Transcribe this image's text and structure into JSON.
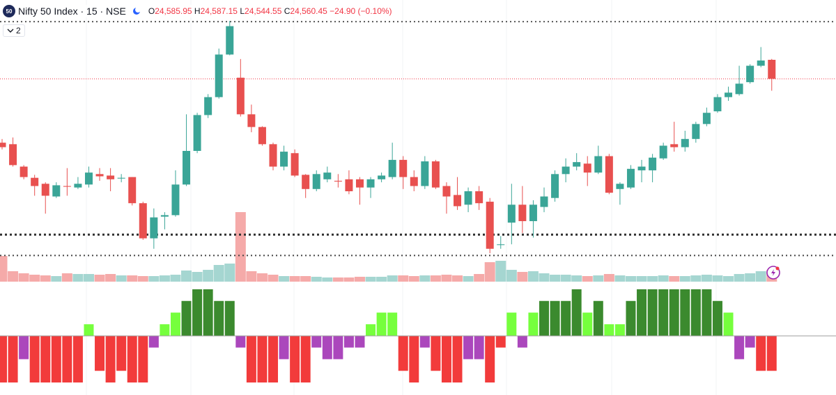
{
  "header": {
    "badge": "50",
    "title": "Nifty 50 Index · 15 · NSE",
    "ohlc": [
      {
        "label": "O",
        "value": "24,585.95"
      },
      {
        "label": "H",
        "value": "24,587.15"
      },
      {
        "label": "L",
        "value": "24,544.55"
      },
      {
        "label": "C",
        "value": "24,560.45"
      }
    ],
    "change": "−24.90 (−0.10%)",
    "indicators_count": "2"
  },
  "chart_data": [
    {
      "type": "candlestick",
      "up_color": "#3aa597",
      "down_color": "#e8504f",
      "price_line_color": "#f23645",
      "ylim": [
        24289,
        24666
      ],
      "levels": [
        24637,
        24352,
        24324
      ],
      "open": [
        24475,
        24473,
        24443,
        24428,
        24420,
        24403,
        24417,
        24415,
        24419,
        24433,
        24431,
        24427,
        24429,
        24394,
        24347,
        24376,
        24378,
        24419,
        24464,
        24512,
        24536,
        24593,
        24562,
        24513,
        24496,
        24473,
        24443,
        24461,
        24432,
        24413,
        24426,
        24424,
        24426,
        24426,
        24415,
        24426,
        24429,
        24452,
        24429,
        24417,
        24450,
        24417,
        24405,
        24392,
        24410,
        24396,
        24338,
        24368,
        24392,
        24370,
        24389,
        24401,
        24433,
        24443,
        24447,
        24435,
        24457,
        24413,
        24415,
        24438,
        24438,
        24454,
        24473,
        24469,
        24480,
        24500,
        24517,
        24536,
        24540,
        24556,
        24578,
        24585.95
      ],
      "high": [
        24480,
        24482,
        24445,
        24432,
        24422,
        24422,
        24441,
        24429,
        24443,
        24441,
        24441,
        24433,
        24429,
        24396,
        24387,
        24382,
        24438,
        24513,
        24515,
        24540,
        24601,
        24638,
        24587,
        24526,
        24497,
        24475,
        24471,
        24466,
        24433,
        24438,
        24443,
        24433,
        24438,
        24429,
        24429,
        24435,
        24475,
        24457,
        24438,
        24457,
        24452,
        24422,
        24429,
        24415,
        24417,
        24401,
        24350,
        24420,
        24417,
        24398,
        24415,
        24438,
        24454,
        24461,
        24457,
        24471,
        24460,
        24422,
        24445,
        24452,
        24460,
        24475,
        24503,
        24491,
        24503,
        24522,
        24540,
        24550,
        24578,
        24580,
        24603,
        24587.15
      ],
      "low": [
        24466,
        24443,
        24426,
        24404,
        24380,
        24401,
        24404,
        24413,
        24415,
        24424,
        24410,
        24422,
        24391,
        24345,
        24333,
        24359,
        24376,
        24417,
        24461,
        24508,
        24534,
        24592,
        24510,
        24489,
        24471,
        24438,
        24438,
        24429,
        24401,
        24410,
        24422,
        24415,
        24406,
        24392,
        24401,
        24422,
        24426,
        24413,
        24410,
        24413,
        24413,
        24380,
        24385,
        24382,
        24385,
        24327,
        24333,
        24339,
        24354,
        24348,
        24382,
        24396,
        24422,
        24438,
        24417,
        24433,
        24406,
        24392,
        24413,
        24422,
        24422,
        24452,
        24463,
        24463,
        24475,
        24497,
        24515,
        24531,
        24538,
        24554,
        24576,
        24544.55
      ],
      "close": [
        24469,
        24445,
        24429,
        24417,
        24404,
        24418,
        24416,
        24420,
        24435,
        24430,
        24426,
        24428,
        24394,
        24347,
        24375,
        24378,
        24419,
        24464,
        24512,
        24536,
        24593,
        24631,
        24513,
        24496,
        24473,
        24443,
        24463,
        24431,
        24413,
        24433,
        24435,
        24423,
        24410,
        24415,
        24426,
        24431,
        24452,
        24429,
        24417,
        24450,
        24415,
        24403,
        24390,
        24410,
        24394,
        24333,
        24339,
        24392,
        24370,
        24392,
        24403,
        24433,
        24443,
        24449,
        24435,
        24457,
        24408,
        24420,
        24440,
        24443,
        24455,
        24471,
        24469,
        24480,
        24500,
        24515,
        24536,
        24542,
        24554,
        24578,
        24585,
        24560.45
      ]
    },
    {
      "type": "bar",
      "up_color": "#a5d6d1",
      "down_color": "#f5aaa9",
      "ylim": [
        0,
        100
      ],
      "values": [
        37,
        15,
        12,
        10,
        9,
        8,
        12,
        11,
        11,
        10,
        11,
        9,
        9,
        8,
        8,
        9,
        10,
        16,
        14,
        17,
        24,
        26,
        100,
        15,
        12,
        10,
        8,
        8,
        8,
        7,
        6,
        6,
        6,
        7,
        7,
        7,
        9,
        9,
        8,
        9,
        9,
        10,
        9,
        8,
        11,
        28,
        30,
        17,
        14,
        15,
        12,
        10,
        10,
        9,
        8,
        9,
        11,
        9,
        8,
        8,
        8,
        9,
        8,
        8,
        9,
        10,
        9,
        8,
        11,
        12,
        15,
        17
      ]
    },
    {
      "type": "bar",
      "ylim": [
        -4,
        4
      ],
      "zero_color": "#9e9e9e",
      "values": [
        -4,
        -4,
        -2,
        -4,
        -4,
        -4,
        -4,
        -4,
        1,
        -3,
        -4,
        -3,
        -4,
        -4,
        -1,
        1,
        2,
        3,
        4,
        4,
        3,
        3,
        -1,
        -4,
        -4,
        -4,
        -2,
        -4,
        -4,
        -1,
        -2,
        -2,
        -1,
        -1,
        1,
        2,
        2,
        -3,
        -4,
        -1,
        -3,
        -4,
        -4,
        -2,
        -2,
        -4,
        -1,
        2,
        -1,
        2,
        3,
        3,
        3,
        4,
        2,
        3,
        1,
        1,
        3,
        4,
        4,
        4,
        4,
        4,
        4,
        4,
        3,
        2,
        -2,
        -1,
        -3,
        -3
      ],
      "colors": [
        "#f23b3b",
        "#f23b3b",
        "#ab47bc",
        "#f23b3b",
        "#f23b3b",
        "#f23b3b",
        "#f23b3b",
        "#f23b3b",
        "#76ff3d",
        "#f23b3b",
        "#f23b3b",
        "#f23b3b",
        "#f23b3b",
        "#f23b3b",
        "#ab47bc",
        "#76ff3d",
        "#76ff3d",
        "#3b8a2e",
        "#3b8a2e",
        "#3b8a2e",
        "#3b8a2e",
        "#3b8a2e",
        "#ab47bc",
        "#f23b3b",
        "#f23b3b",
        "#f23b3b",
        "#ab47bc",
        "#f23b3b",
        "#f23b3b",
        "#ab47bc",
        "#ab47bc",
        "#ab47bc",
        "#ab47bc",
        "#ab47bc",
        "#76ff3d",
        "#76ff3d",
        "#76ff3d",
        "#f23b3b",
        "#f23b3b",
        "#ab47bc",
        "#f23b3b",
        "#f23b3b",
        "#f23b3b",
        "#ab47bc",
        "#ab47bc",
        "#f23b3b",
        "#f23b3b",
        "#76ff3d",
        "#ab47bc",
        "#76ff3d",
        "#3b8a2e",
        "#3b8a2e",
        "#3b8a2e",
        "#3b8a2e",
        "#76ff3d",
        "#3b8a2e",
        "#76ff3d",
        "#76ff3d",
        "#3b8a2e",
        "#3b8a2e",
        "#3b8a2e",
        "#3b8a2e",
        "#3b8a2e",
        "#3b8a2e",
        "#3b8a2e",
        "#3b8a2e",
        "#3b8a2e",
        "#76ff3d",
        "#ab47bc",
        "#ab47bc",
        "#f23b3b",
        "#f23b3b"
      ]
    }
  ]
}
